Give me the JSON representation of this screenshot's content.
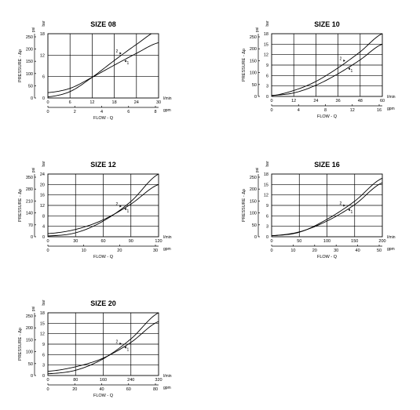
{
  "chart_data": [
    {
      "type": "line",
      "title": "SIZE 08",
      "ylabel": "PRESSURE - Δp",
      "xlabel": "FLOW - Q",
      "y_units": [
        "bar",
        "psi"
      ],
      "x_units": [
        "l/min",
        "gpm"
      ],
      "ylim": [
        0,
        18
      ],
      "y_ticks_bar": [
        "0",
        "6",
        "12",
        "18"
      ],
      "y_ticks_psi": [
        "0",
        "50",
        "100",
        "150",
        "200",
        "250"
      ],
      "xlim": [
        0,
        30
      ],
      "x_ticks_lmin": [
        "0",
        "6",
        "12",
        "18",
        "24",
        "30"
      ],
      "x_ticks_gpm": [
        "0",
        "2",
        "4",
        "6",
        "8"
      ],
      "series": [
        {
          "name": "1",
          "x": [
            0,
            6,
            12,
            18,
            24,
            30
          ],
          "y": [
            1.5,
            2.7,
            5.8,
            9.2,
            12.5,
            15.5
          ]
        },
        {
          "name": "2",
          "x": [
            0,
            6,
            12,
            18,
            24,
            30
          ],
          "y": [
            0.3,
            1.8,
            5.8,
            10.5,
            15.0,
            19.0
          ]
        }
      ]
    },
    {
      "type": "line",
      "title": "SIZE 10",
      "ylabel": "PRESSURE - Δp",
      "xlabel": "FLOW - Q",
      "y_units": [
        "bar",
        "psi"
      ],
      "x_units": [
        "l/min",
        "gpm"
      ],
      "ylim": [
        0,
        18
      ],
      "y_ticks_bar": [
        "0",
        "3",
        "6",
        "9",
        "12",
        "15",
        "18"
      ],
      "y_ticks_psi": [
        "0",
        "50",
        "100",
        "150",
        "200",
        "250"
      ],
      "xlim": [
        0,
        60
      ],
      "x_ticks_lmin": [
        "0",
        "12",
        "24",
        "36",
        "48",
        "60"
      ],
      "x_ticks_gpm": [
        "0",
        "4",
        "8",
        "12",
        "16"
      ],
      "series": [
        {
          "name": "1",
          "x": [
            0,
            12,
            24,
            36,
            48,
            60
          ],
          "y": [
            0.3,
            1.0,
            3.2,
            6.5,
            10.5,
            15.0
          ]
        },
        {
          "name": "2",
          "x": [
            0,
            12,
            24,
            36,
            48,
            60
          ],
          "y": [
            0.2,
            1.7,
            4.3,
            8.2,
            12.8,
            18.0
          ]
        }
      ]
    },
    {
      "type": "line",
      "title": "SIZE 12",
      "ylabel": "PRESSURE - Δp",
      "xlabel": "FLOW - Q",
      "y_units": [
        "bar",
        "psi"
      ],
      "x_units": [
        "l/min",
        "gpm"
      ],
      "ylim": [
        0,
        24
      ],
      "y_ticks_bar": [
        "0",
        "4",
        "8",
        "12",
        "16",
        "20",
        "24"
      ],
      "y_ticks_psi": [
        "0",
        "70",
        "140",
        "210",
        "280",
        "350"
      ],
      "xlim": [
        0,
        120
      ],
      "x_ticks_lmin": [
        "0",
        "30",
        "60",
        "90",
        "120"
      ],
      "x_ticks_gpm": [
        "0",
        "10",
        "20",
        "30"
      ],
      "series": [
        {
          "name": "1",
          "x": [
            0,
            30,
            60,
            90,
            120
          ],
          "y": [
            1.2,
            2.8,
            6.5,
            12.5,
            20.0
          ]
        },
        {
          "name": "2",
          "x": [
            0,
            30,
            60,
            90,
            120
          ],
          "y": [
            0.3,
            1.5,
            6.0,
            13.5,
            24.0
          ]
        }
      ]
    },
    {
      "type": "line",
      "title": "SIZE 16",
      "ylabel": "PRESSURE - Δp",
      "xlabel": "FLOW - Q",
      "y_units": [
        "bar",
        "psi"
      ],
      "x_units": [
        "l/min",
        "gpm"
      ],
      "ylim": [
        0,
        18
      ],
      "y_ticks_bar": [
        "0",
        "3",
        "6",
        "9",
        "12",
        "15",
        "18"
      ],
      "y_ticks_psi": [
        "0",
        "50",
        "100",
        "150",
        "200",
        "250"
      ],
      "xlim": [
        0,
        200
      ],
      "x_ticks_lmin": [
        "0",
        "50",
        "100",
        "150",
        "200"
      ],
      "x_ticks_gpm": [
        "0",
        "10",
        "20",
        "30",
        "40",
        "50"
      ],
      "series": [
        {
          "name": "1",
          "x": [
            0,
            50,
            100,
            150,
            200
          ],
          "y": [
            0.3,
            1.4,
            4.5,
            9.2,
            15.5
          ]
        },
        {
          "name": "2",
          "x": [
            0,
            50,
            100,
            150,
            200
          ],
          "y": [
            0.3,
            1.3,
            5.0,
            10.2,
            16.8
          ]
        }
      ]
    },
    {
      "type": "line",
      "title": "SIZE 20",
      "ylabel": "PRESSURE - Δp",
      "xlabel": "FLOW - Q",
      "y_units": [
        "bar",
        "psi"
      ],
      "x_units": [
        "l/min",
        "gpm"
      ],
      "ylim": [
        0,
        18
      ],
      "y_ticks_bar": [
        "0",
        "3",
        "6",
        "9",
        "12",
        "15",
        "18"
      ],
      "y_ticks_psi": [
        "0",
        "50",
        "100",
        "150",
        "200",
        "250"
      ],
      "xlim": [
        0,
        320
      ],
      "x_ticks_lmin": [
        "0",
        "80",
        "160",
        "240",
        "320"
      ],
      "x_ticks_gpm": [
        "0",
        "20",
        "40",
        "60",
        "80"
      ],
      "series": [
        {
          "name": "1",
          "x": [
            0,
            80,
            160,
            240,
            320
          ],
          "y": [
            1.2,
            2.5,
            5.0,
            9.5,
            15.5
          ]
        },
        {
          "name": "2",
          "x": [
            0,
            80,
            160,
            240,
            320
          ],
          "y": [
            0.5,
            1.5,
            4.8,
            10.5,
            18.0
          ]
        }
      ]
    }
  ]
}
